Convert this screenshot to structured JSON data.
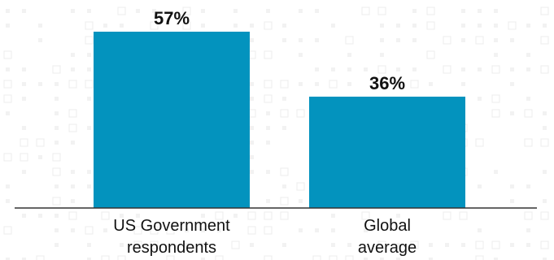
{
  "chart_data": {
    "type": "bar",
    "title": "",
    "xlabel": "",
    "ylabel": "",
    "ylim": [
      0,
      60
    ],
    "grid": false,
    "legend": "none",
    "bar_color": "#0393BE",
    "categories": [
      {
        "label_lines": [
          "US Government",
          "respondents"
        ],
        "value": 57,
        "display": "57%"
      },
      {
        "label_lines": [
          "Global",
          "average"
        ],
        "value": 36,
        "display": "36%"
      }
    ]
  }
}
